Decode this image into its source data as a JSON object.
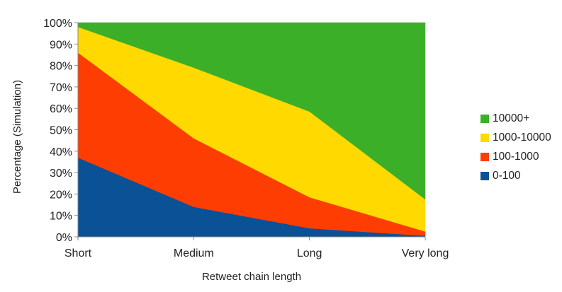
{
  "chart_data": {
    "type": "area",
    "stacked": true,
    "categories": [
      "Short",
      "Medium",
      "Long",
      "Very long"
    ],
    "series": [
      {
        "name": "0-100",
        "color": "#0a5196",
        "values": [
          37,
          14,
          4,
          0.5
        ]
      },
      {
        "name": "100-1000",
        "color": "#fe3d02",
        "values": [
          49,
          32,
          14.5,
          2
        ]
      },
      {
        "name": "1000-10000",
        "color": "#ffd900",
        "values": [
          12,
          33,
          40,
          15
        ]
      },
      {
        "name": "10000+",
        "color": "#3caf29",
        "values": [
          2,
          21,
          41.5,
          82.5
        ]
      }
    ],
    "xlabel": "Retweet chain length",
    "ylabel": "Percentage (Simulation)",
    "ylim": [
      0,
      100
    ],
    "yticks": [
      "0%",
      "10%",
      "20%",
      "30%",
      "40%",
      "50%",
      "60%",
      "70%",
      "80%",
      "90%",
      "100%"
    ],
    "grid": false,
    "legend_position": "right"
  }
}
